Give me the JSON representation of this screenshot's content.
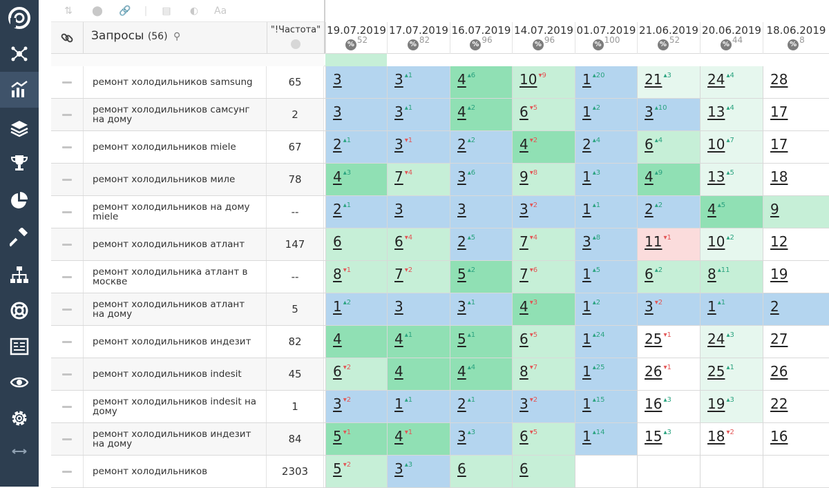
{
  "header": {
    "title": "Запросы",
    "count": "(56)",
    "freq_label": "\"!Частота\""
  },
  "dates": [
    {
      "date": "19.07.2019",
      "pct": "52"
    },
    {
      "date": "17.07.2019",
      "pct": "82"
    },
    {
      "date": "16.07.2019",
      "pct": "96"
    },
    {
      "date": "14.07.2019",
      "pct": "96"
    },
    {
      "date": "01.07.2019",
      "pct": "100"
    },
    {
      "date": "21.06.2019",
      "pct": "52"
    },
    {
      "date": "20.06.2019",
      "pct": "44"
    },
    {
      "date": "18.06.2019",
      "pct": "8"
    }
  ],
  "colors": {
    "sidebar": "#2d3e50",
    "blue": "#b4d5ef",
    "green": "#90e0b4",
    "light_green": "#c6efd7",
    "pale_green": "#e6f7ee",
    "pink": "#fbdcdc",
    "white": "#ffffff",
    "up": "#2aa37f",
    "down": "#e25555"
  },
  "rows": [
    {
      "query": "ремонт холодильников samsung",
      "freq": "65",
      "cells": [
        {
          "v": "3",
          "c": "",
          "bg": "blue"
        },
        {
          "v": "3",
          "c": "1",
          "d": "up",
          "bg": "blue"
        },
        {
          "v": "4",
          "c": "6",
          "d": "up",
          "bg": "green"
        },
        {
          "v": "10",
          "c": "9",
          "d": "down",
          "bg": "light_green"
        },
        {
          "v": "1",
          "c": "20",
          "d": "up",
          "bg": "blue"
        },
        {
          "v": "21",
          "c": "3",
          "d": "up",
          "bg": "pale_green"
        },
        {
          "v": "24",
          "c": "4",
          "d": "up",
          "bg": "pale_green"
        },
        {
          "v": "28",
          "c": "",
          "bg": "white"
        }
      ]
    },
    {
      "query": "ремонт холодильников самсунг на дому",
      "freq": "2",
      "cells": [
        {
          "v": "3",
          "c": "",
          "bg": "blue"
        },
        {
          "v": "3",
          "c": "1",
          "d": "up",
          "bg": "blue"
        },
        {
          "v": "4",
          "c": "2",
          "d": "up",
          "bg": "green"
        },
        {
          "v": "6",
          "c": "5",
          "d": "down",
          "bg": "light_green"
        },
        {
          "v": "1",
          "c": "2",
          "d": "up",
          "bg": "blue"
        },
        {
          "v": "3",
          "c": "10",
          "d": "up",
          "bg": "blue"
        },
        {
          "v": "13",
          "c": "4",
          "d": "up",
          "bg": "pale_green"
        },
        {
          "v": "17",
          "c": "",
          "bg": "white"
        }
      ]
    },
    {
      "query": "ремонт холодильников miele",
      "freq": "67",
      "cells": [
        {
          "v": "2",
          "c": "1",
          "d": "up",
          "bg": "blue"
        },
        {
          "v": "3",
          "c": "1",
          "d": "down",
          "bg": "blue"
        },
        {
          "v": "2",
          "c": "2",
          "d": "up",
          "bg": "blue"
        },
        {
          "v": "4",
          "c": "2",
          "d": "down",
          "bg": "green"
        },
        {
          "v": "2",
          "c": "4",
          "d": "up",
          "bg": "blue"
        },
        {
          "v": "6",
          "c": "4",
          "d": "up",
          "bg": "light_green"
        },
        {
          "v": "10",
          "c": "7",
          "d": "up",
          "bg": "pale_green"
        },
        {
          "v": "17",
          "c": "",
          "bg": "white"
        }
      ]
    },
    {
      "query": "ремонт холодильников миле",
      "freq": "78",
      "cells": [
        {
          "v": "4",
          "c": "3",
          "d": "up",
          "bg": "green"
        },
        {
          "v": "7",
          "c": "4",
          "d": "down",
          "bg": "light_green"
        },
        {
          "v": "3",
          "c": "6",
          "d": "up",
          "bg": "blue"
        },
        {
          "v": "9",
          "c": "8",
          "d": "down",
          "bg": "light_green"
        },
        {
          "v": "1",
          "c": "3",
          "d": "up",
          "bg": "blue"
        },
        {
          "v": "4",
          "c": "9",
          "d": "up",
          "bg": "green"
        },
        {
          "v": "13",
          "c": "5",
          "d": "up",
          "bg": "pale_green"
        },
        {
          "v": "18",
          "c": "",
          "bg": "white"
        }
      ]
    },
    {
      "query": "ремонт холодильников на дому miele",
      "freq": "--",
      "cells": [
        {
          "v": "2",
          "c": "1",
          "d": "up",
          "bg": "blue"
        },
        {
          "v": "3",
          "c": "",
          "bg": "blue"
        },
        {
          "v": "3",
          "c": "",
          "bg": "blue"
        },
        {
          "v": "3",
          "c": "2",
          "d": "down",
          "bg": "blue"
        },
        {
          "v": "1",
          "c": "1",
          "d": "up",
          "bg": "blue"
        },
        {
          "v": "2",
          "c": "2",
          "d": "up",
          "bg": "blue"
        },
        {
          "v": "4",
          "c": "5",
          "d": "up",
          "bg": "green"
        },
        {
          "v": "9",
          "c": "",
          "bg": "light_green"
        }
      ]
    },
    {
      "query": "ремонт холодильников атлант",
      "freq": "147",
      "cells": [
        {
          "v": "6",
          "c": "",
          "bg": "light_green"
        },
        {
          "v": "6",
          "c": "4",
          "d": "down",
          "bg": "light_green"
        },
        {
          "v": "2",
          "c": "5",
          "d": "up",
          "bg": "blue"
        },
        {
          "v": "7",
          "c": "4",
          "d": "down",
          "bg": "light_green"
        },
        {
          "v": "3",
          "c": "8",
          "d": "up",
          "bg": "blue"
        },
        {
          "v": "11",
          "c": "1",
          "d": "down",
          "bg": "pink"
        },
        {
          "v": "10",
          "c": "2",
          "d": "up",
          "bg": "pale_green"
        },
        {
          "v": "12",
          "c": "",
          "bg": "white"
        }
      ]
    },
    {
      "query": "ремонт холодильника атлант в москве",
      "freq": "--",
      "cells": [
        {
          "v": "8",
          "c": "1",
          "d": "down",
          "bg": "light_green"
        },
        {
          "v": "7",
          "c": "2",
          "d": "down",
          "bg": "light_green"
        },
        {
          "v": "5",
          "c": "2",
          "d": "up",
          "bg": "green"
        },
        {
          "v": "7",
          "c": "6",
          "d": "down",
          "bg": "light_green"
        },
        {
          "v": "1",
          "c": "5",
          "d": "up",
          "bg": "blue"
        },
        {
          "v": "6",
          "c": "2",
          "d": "up",
          "bg": "light_green"
        },
        {
          "v": "8",
          "c": "11",
          "d": "up",
          "bg": "light_green"
        },
        {
          "v": "19",
          "c": "",
          "bg": "white"
        }
      ]
    },
    {
      "query": "ремонт холодильников атлант на дому",
      "freq": "5",
      "cells": [
        {
          "v": "1",
          "c": "2",
          "d": "up",
          "bg": "blue"
        },
        {
          "v": "3",
          "c": "",
          "bg": "blue"
        },
        {
          "v": "3",
          "c": "1",
          "d": "up",
          "bg": "blue"
        },
        {
          "v": "4",
          "c": "3",
          "d": "down",
          "bg": "green"
        },
        {
          "v": "1",
          "c": "2",
          "d": "up",
          "bg": "blue"
        },
        {
          "v": "3",
          "c": "2",
          "d": "down",
          "bg": "blue"
        },
        {
          "v": "1",
          "c": "1",
          "d": "up",
          "bg": "blue"
        },
        {
          "v": "2",
          "c": "",
          "bg": "blue"
        }
      ]
    },
    {
      "query": "ремонт холодильников индезит",
      "freq": "82",
      "cells": [
        {
          "v": "4",
          "c": "",
          "bg": "green"
        },
        {
          "v": "4",
          "c": "1",
          "d": "up",
          "bg": "green"
        },
        {
          "v": "5",
          "c": "1",
          "d": "up",
          "bg": "green"
        },
        {
          "v": "6",
          "c": "5",
          "d": "down",
          "bg": "light_green"
        },
        {
          "v": "1",
          "c": "24",
          "d": "up",
          "bg": "blue"
        },
        {
          "v": "25",
          "c": "1",
          "d": "down",
          "bg": "white"
        },
        {
          "v": "24",
          "c": "3",
          "d": "up",
          "bg": "pale_green"
        },
        {
          "v": "27",
          "c": "",
          "bg": "white"
        }
      ]
    },
    {
      "query": "ремонт холодильников indesit",
      "freq": "45",
      "cells": [
        {
          "v": "6",
          "c": "2",
          "d": "down",
          "bg": "light_green"
        },
        {
          "v": "4",
          "c": "",
          "bg": "green"
        },
        {
          "v": "4",
          "c": "4",
          "d": "up",
          "bg": "green"
        },
        {
          "v": "8",
          "c": "7",
          "d": "down",
          "bg": "light_green"
        },
        {
          "v": "1",
          "c": "25",
          "d": "up",
          "bg": "blue"
        },
        {
          "v": "26",
          "c": "1",
          "d": "down",
          "bg": "white"
        },
        {
          "v": "25",
          "c": "1",
          "d": "up",
          "bg": "pale_green"
        },
        {
          "v": "26",
          "c": "",
          "bg": "white"
        }
      ]
    },
    {
      "query": "ремонт холодильников indesit на дому",
      "freq": "1",
      "cells": [
        {
          "v": "3",
          "c": "2",
          "d": "down",
          "bg": "blue"
        },
        {
          "v": "1",
          "c": "1",
          "d": "up",
          "bg": "blue"
        },
        {
          "v": "2",
          "c": "1",
          "d": "up",
          "bg": "blue"
        },
        {
          "v": "3",
          "c": "2",
          "d": "down",
          "bg": "blue"
        },
        {
          "v": "1",
          "c": "15",
          "d": "up",
          "bg": "blue"
        },
        {
          "v": "16",
          "c": "3",
          "d": "up",
          "bg": "white"
        },
        {
          "v": "19",
          "c": "3",
          "d": "up",
          "bg": "pale_green"
        },
        {
          "v": "22",
          "c": "",
          "bg": "white"
        }
      ]
    },
    {
      "query": "ремонт холодильников индезит на дому",
      "freq": "84",
      "cells": [
        {
          "v": "5",
          "c": "1",
          "d": "down",
          "bg": "green"
        },
        {
          "v": "4",
          "c": "1",
          "d": "down",
          "bg": "green"
        },
        {
          "v": "3",
          "c": "3",
          "d": "up",
          "bg": "blue"
        },
        {
          "v": "6",
          "c": "5",
          "d": "down",
          "bg": "light_green"
        },
        {
          "v": "1",
          "c": "14",
          "d": "up",
          "bg": "blue"
        },
        {
          "v": "15",
          "c": "3",
          "d": "up",
          "bg": "white"
        },
        {
          "v": "18",
          "c": "2",
          "d": "down",
          "bg": "white"
        },
        {
          "v": "16",
          "c": "",
          "bg": "white"
        }
      ]
    },
    {
      "query": "ремонт холодильников",
      "freq": "2303",
      "cells": [
        {
          "v": "5",
          "c": "2",
          "d": "down",
          "bg": "light_green"
        },
        {
          "v": "3",
          "c": "3",
          "d": "up",
          "bg": "blue"
        },
        {
          "v": "6",
          "c": "",
          "bg": "light_green"
        },
        {
          "v": "6",
          "c": "",
          "bg": "light_green"
        },
        {
          "v": "",
          "c": "",
          "bg": "white"
        },
        {
          "v": "",
          "c": "",
          "bg": "white"
        },
        {
          "v": "",
          "c": "",
          "bg": "white"
        },
        {
          "v": "",
          "c": "",
          "bg": "white"
        }
      ]
    }
  ]
}
